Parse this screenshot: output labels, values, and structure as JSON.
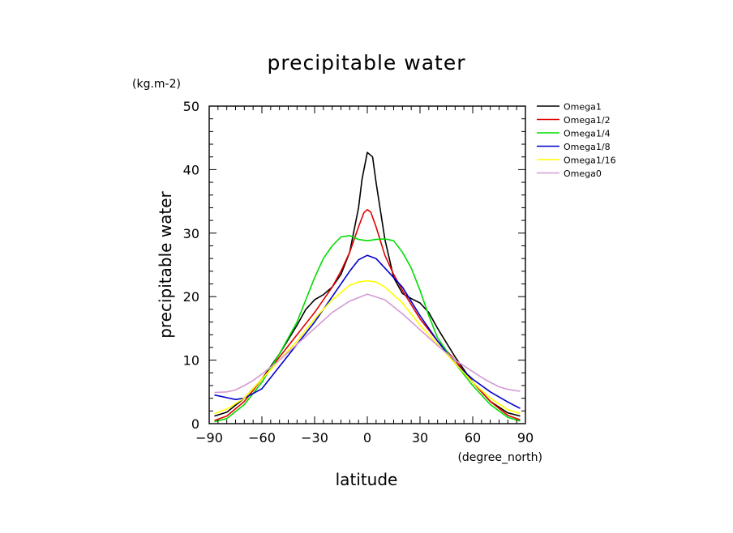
{
  "chart_data": {
    "type": "line",
    "title": "precipitable water",
    "unit_label": "(kg.m-2)",
    "xlabel": "latitude",
    "xunit_label": "(degree_north)",
    "ylabel": "precipitable water",
    "xlim": [
      -90,
      90
    ],
    "ylim": [
      0,
      50
    ],
    "x_ticks": [
      -90,
      -60,
      -30,
      0,
      30,
      60,
      90
    ],
    "x_tick_labels": [
      "−90",
      "−60",
      "−30",
      "0",
      "30",
      "60",
      "90"
    ],
    "y_ticks": [
      0,
      10,
      20,
      30,
      40,
      50
    ],
    "y_tick_labels": [
      "0",
      "10",
      "20",
      "30",
      "40",
      "50"
    ],
    "grid": false,
    "legend_position": "right-top, outside plot",
    "series": [
      {
        "name": "Omega1",
        "color": "#000000",
        "x": [
          -87,
          -80,
          -70,
          -60,
          -50,
          -40,
          -35,
          -30,
          -25,
          -20,
          -15,
          -10,
          -5,
          -3,
          0,
          3,
          5,
          10,
          15,
          20,
          25,
          30,
          35,
          40,
          50,
          60,
          70,
          80,
          87
        ],
        "y": [
          1.2,
          1.8,
          4,
          7,
          11,
          15.5,
          18,
          19.5,
          20.3,
          21.5,
          23.5,
          27,
          34,
          38.5,
          42.7,
          42,
          38,
          29,
          23,
          20.5,
          19.7,
          19,
          17.5,
          15,
          10.5,
          6.5,
          3.5,
          1.7,
          1.2
        ]
      },
      {
        "name": "Omega1/2",
        "color": "#e00000",
        "x": [
          -87,
          -80,
          -70,
          -60,
          -50,
          -40,
          -30,
          -20,
          -15,
          -10,
          -5,
          -2,
          0,
          2,
          5,
          10,
          15,
          20,
          30,
          40,
          50,
          60,
          70,
          80,
          87
        ],
        "y": [
          0.5,
          1.2,
          3.5,
          7,
          10.5,
          14,
          17.5,
          21.5,
          24,
          27,
          31,
          33.2,
          33.7,
          33.3,
          31,
          26.5,
          23.5,
          21,
          16.5,
          13,
          10,
          6.5,
          3.5,
          1.3,
          0.6
        ]
      },
      {
        "name": "Omega1/4",
        "color": "#00dd00",
        "x": [
          -87,
          -80,
          -70,
          -60,
          -50,
          -40,
          -35,
          -30,
          -25,
          -20,
          -15,
          -10,
          -5,
          0,
          5,
          10,
          15,
          20,
          25,
          30,
          35,
          40,
          50,
          60,
          70,
          80,
          87
        ],
        "y": [
          0.3,
          0.8,
          3,
          6.5,
          11,
          16,
          19.5,
          23,
          26,
          28,
          29.4,
          29.6,
          29,
          28.8,
          29,
          29.1,
          28.8,
          27,
          24.5,
          21,
          17,
          13.5,
          9.5,
          6,
          3,
          1,
          0.4
        ]
      },
      {
        "name": "Omega1/8",
        "color": "#0000cc",
        "x": [
          -87,
          -80,
          -75,
          -70,
          -60,
          -50,
          -40,
          -30,
          -20,
          -10,
          -5,
          0,
          5,
          10,
          20,
          30,
          40,
          50,
          60,
          70,
          80,
          87
        ],
        "y": [
          4.5,
          4.1,
          3.8,
          4,
          5.5,
          9,
          12.5,
          16,
          20,
          24,
          25.8,
          26.5,
          26,
          24.5,
          21.5,
          17,
          13,
          9.5,
          7,
          5,
          3.4,
          2.4
        ]
      },
      {
        "name": "Omega1/16",
        "color": "#ffff00",
        "x": [
          -87,
          -80,
          -70,
          -60,
          -50,
          -40,
          -30,
          -20,
          -10,
          -5,
          0,
          5,
          10,
          20,
          30,
          40,
          50,
          60,
          70,
          80,
          87
        ],
        "y": [
          1.6,
          2.3,
          4,
          7,
          10,
          13,
          16.5,
          19.5,
          21.8,
          22.3,
          22.5,
          22.3,
          21.5,
          19,
          15.5,
          12.5,
          9.5,
          6.5,
          4,
          2.2,
          1.6
        ]
      },
      {
        "name": "Omega0",
        "color": "#d39bd3",
        "x": [
          -87,
          -80,
          -75,
          -70,
          -65,
          -60,
          -50,
          -40,
          -30,
          -20,
          -10,
          0,
          10,
          20,
          30,
          40,
          50,
          60,
          65,
          70,
          75,
          80,
          87
        ],
        "y": [
          4.9,
          5,
          5.3,
          6,
          6.8,
          7.8,
          10,
          12.5,
          15,
          17.5,
          19.3,
          20.4,
          19.5,
          17.3,
          14.8,
          12.3,
          10,
          8.2,
          7.3,
          6.5,
          5.8,
          5.4,
          5.1
        ]
      }
    ]
  }
}
